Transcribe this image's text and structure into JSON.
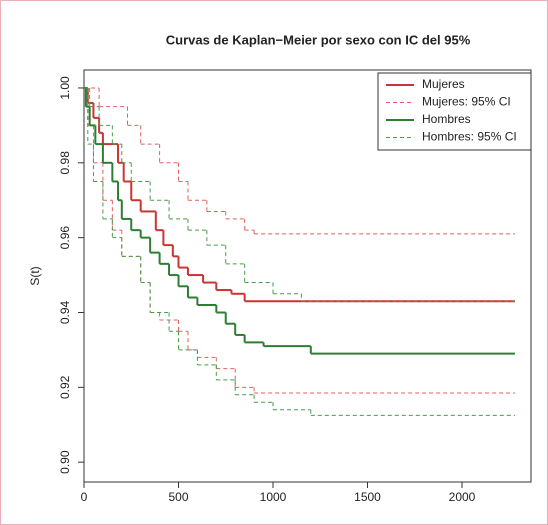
{
  "chart_data": {
    "type": "step",
    "title": "Curvas de Kaplan−Meier por sexo con IC del 95%",
    "y_label": "S(t)",
    "xlim": [
      0,
      2365
    ],
    "xticks": [
      0,
      500,
      1000,
      1500,
      2000
    ],
    "ylim": [
      0.8947,
      1.0048
    ],
    "yticks": [
      {
        "value": 0.9,
        "label": "0.90"
      },
      0.92,
      0.94,
      0.96,
      0.98,
      {
        "value": 1,
        "label": "1.00"
      }
    ],
    "legend": "top-right",
    "series": [
      {
        "name": "Mujeres",
        "color": "#cc3333",
        "dashed": false,
        "lines": [
          {
            "x": [
              0,
              20,
              50,
              80,
              100,
              180,
              210,
              250,
              300,
              380,
              420,
              470,
              500,
              550,
              630,
              700,
              780,
              850,
              2280
            ],
            "values": [
              1.0,
              0.996,
              0.992,
              0.988,
              0.985,
              0.98,
              0.975,
              0.97,
              0.967,
              0.962,
              0.958,
              0.955,
              0.952,
              0.95,
              0.948,
              0.946,
              0.945,
              0.943,
              0.943
            ]
          }
        ]
      },
      {
        "name": "Mujeres: 95% CI",
        "color": "#e06060",
        "dashed": true,
        "lines": [
          {
            "x": [
              0,
              80,
              230,
              300,
              400,
              500,
              550,
              650,
              750,
              850,
              900,
              2280
            ],
            "values": [
              1.0,
              0.995,
              0.99,
              0.985,
              0.98,
              0.975,
              0.97,
              0.967,
              0.965,
              0.962,
              0.961,
              0.961
            ]
          },
          {
            "x": [
              0,
              20,
              50,
              100,
              150,
              200,
              300,
              350,
              400,
              500,
              550,
              600,
              700,
              800,
              900,
              2280
            ],
            "values": [
              1.0,
              0.99,
              0.98,
              0.97,
              0.962,
              0.955,
              0.948,
              0.94,
              0.938,
              0.935,
              0.93,
              0.928,
              0.925,
              0.92,
              0.9185,
              0.9185
            ]
          }
        ]
      },
      {
        "name": "Hombres",
        "color": "#2e7d32",
        "dashed": false,
        "lines": [
          {
            "x": [
              0,
              10,
              30,
              60,
              100,
              150,
              180,
              200,
              250,
              300,
              350,
              400,
              450,
              500,
              550,
              600,
              700,
              750,
              800,
              850,
              950,
              1200,
              2280
            ],
            "values": [
              1.0,
              0.995,
              0.99,
              0.985,
              0.98,
              0.975,
              0.97,
              0.965,
              0.962,
              0.96,
              0.956,
              0.953,
              0.95,
              0.947,
              0.944,
              0.942,
              0.94,
              0.937,
              0.934,
              0.932,
              0.931,
              0.929,
              0.929
            ]
          }
        ]
      },
      {
        "name": "Hombres: 95% CI",
        "color": "#4a9a4a",
        "dashed": true,
        "lines": [
          {
            "x": [
              0,
              30,
              80,
              150,
              200,
              250,
              350,
              450,
              550,
              650,
              750,
              850,
              1000,
              1150,
              2280
            ],
            "values": [
              1.0,
              0.995,
              0.99,
              0.985,
              0.98,
              0.975,
              0.97,
              0.965,
              0.962,
              0.958,
              0.953,
              0.948,
              0.945,
              0.943,
              0.943
            ]
          },
          {
            "x": [
              0,
              20,
              50,
              100,
              150,
              200,
              300,
              350,
              450,
              500,
              600,
              700,
              800,
              900,
              1000,
              1200,
              2280
            ],
            "values": [
              1.0,
              0.985,
              0.975,
              0.965,
              0.96,
              0.955,
              0.948,
              0.94,
              0.935,
              0.93,
              0.926,
              0.922,
              0.918,
              0.916,
              0.914,
              0.9125,
              0.9125
            ]
          }
        ]
      }
    ]
  }
}
